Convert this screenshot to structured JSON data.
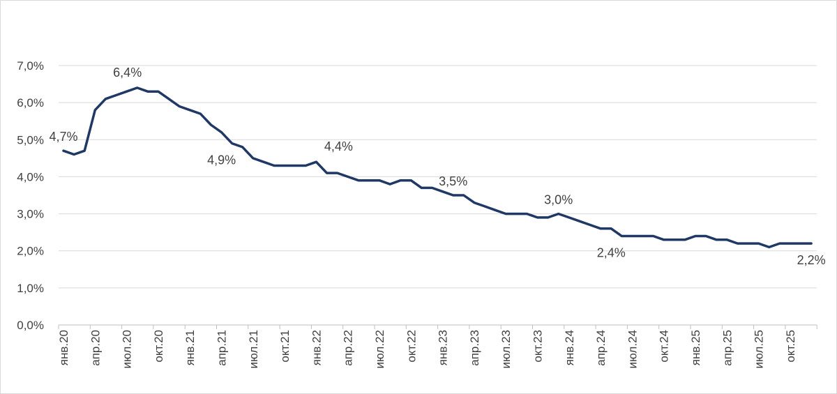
{
  "chart_data": {
    "type": "line",
    "title": "",
    "xlabel": "",
    "ylabel": "",
    "ylim": [
      0,
      7
    ],
    "y_ticks": [
      "0,0%",
      "1,0%",
      "2,0%",
      "3,0%",
      "4,0%",
      "5,0%",
      "6,0%",
      "7,0%"
    ],
    "grid": true,
    "color": "#1f3864",
    "x_tick_labels": [
      "янв.20",
      "апр.20",
      "июл.20",
      "окт.20",
      "янв.21",
      "апр.21",
      "июл.21",
      "окт.21",
      "янв.22",
      "апр.22",
      "июл.22",
      "окт.22",
      "янв.23",
      "апр.23",
      "июл.23",
      "окт.23",
      "янв.24",
      "апр.24",
      "июл.24",
      "окт.24",
      "янв.25",
      "апр.25",
      "июл.25",
      "окт.25"
    ],
    "series": [
      {
        "name": "",
        "values": [
          4.7,
          4.6,
          4.7,
          5.8,
          6.1,
          6.2,
          6.3,
          6.4,
          6.3,
          6.3,
          6.1,
          5.9,
          5.8,
          5.7,
          5.4,
          5.2,
          4.9,
          4.8,
          4.5,
          4.4,
          4.3,
          4.3,
          4.3,
          4.3,
          4.4,
          4.1,
          4.1,
          4.0,
          3.9,
          3.9,
          3.9,
          3.8,
          3.9,
          3.9,
          3.7,
          3.7,
          3.6,
          3.5,
          3.5,
          3.3,
          3.2,
          3.1,
          3.0,
          3.0,
          3.0,
          2.9,
          2.9,
          3.0,
          2.9,
          2.8,
          2.7,
          2.6,
          2.6,
          2.4,
          2.4,
          2.4,
          2.4,
          2.3,
          2.3,
          2.3,
          2.4,
          2.4,
          2.3,
          2.3,
          2.2,
          2.2,
          2.2,
          2.1,
          2.2,
          2.2,
          2.2,
          2.2
        ]
      }
    ],
    "data_labels": [
      {
        "index": 0,
        "text": "4,7%",
        "pos": "above"
      },
      {
        "index": 7,
        "text": "6,4%",
        "pos": "above-left"
      },
      {
        "index": 16,
        "text": "4,9%",
        "pos": "below-left"
      },
      {
        "index": 24,
        "text": "4,4%",
        "pos": "above-right"
      },
      {
        "index": 37,
        "text": "3,5%",
        "pos": "above"
      },
      {
        "index": 47,
        "text": "3,0%",
        "pos": "above"
      },
      {
        "index": 53,
        "text": "2,4%",
        "pos": "below-left"
      },
      {
        "index": 71,
        "text": "2,2%",
        "pos": "below"
      }
    ]
  }
}
